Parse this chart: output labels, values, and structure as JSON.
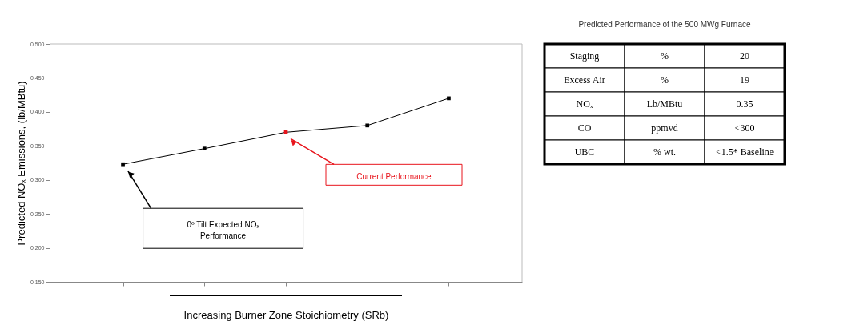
{
  "chart_data": [
    {
      "type": "line",
      "ylabel": "Predicted NOₓ Emissions, (lb/MBtu)",
      "xlabel": "Increasing Burner Zone Stoichiometry (SRb)",
      "categories": [
        null,
        null,
        null,
        null,
        null
      ],
      "series": [
        {
          "color": "#000000",
          "values": [
            0.323,
            0.346,
            0.37,
            0.38,
            0.42
          ],
          "colors": [
            "#000000",
            "#000000",
            "#e8141c",
            "#000000",
            "#000000"
          ]
        }
      ],
      "ylim": [
        0.15,
        0.5
      ],
      "yticks": [
        {
          "value": 0.15,
          "label": "0.150"
        },
        {
          "value": 0.2,
          "label": "0.200"
        },
        {
          "value": 0.25,
          "label": "0.250"
        },
        {
          "value": 0.3,
          "label": "0.300"
        },
        {
          "value": 0.35,
          "label": "0.350"
        },
        {
          "value": 0.4,
          "label": "0.400"
        },
        {
          "value": 0.45,
          "label": "0.450"
        },
        {
          "value": 0.5,
          "label": "0.500"
        }
      ],
      "tick_labels": "y",
      "grid": false,
      "marker": "square",
      "line_style": "solid",
      "annotations": [
        "0º Tilt Expected NOₓ Performance",
        "Current Performance"
      ]
    },
    {
      "type": "other",
      "title": "Predicted Performance of the 500 MWg Furnace",
      "annotations": [
        "Staging",
        "%",
        "20",
        "Excess Air",
        "%",
        "19",
        "NOₓ",
        "Lb/MBtu",
        "0.35",
        "CO",
        "ppmvd",
        "<300",
        "UBC",
        "% wt.",
        "<1.5* Baseline"
      ]
    }
  ]
}
